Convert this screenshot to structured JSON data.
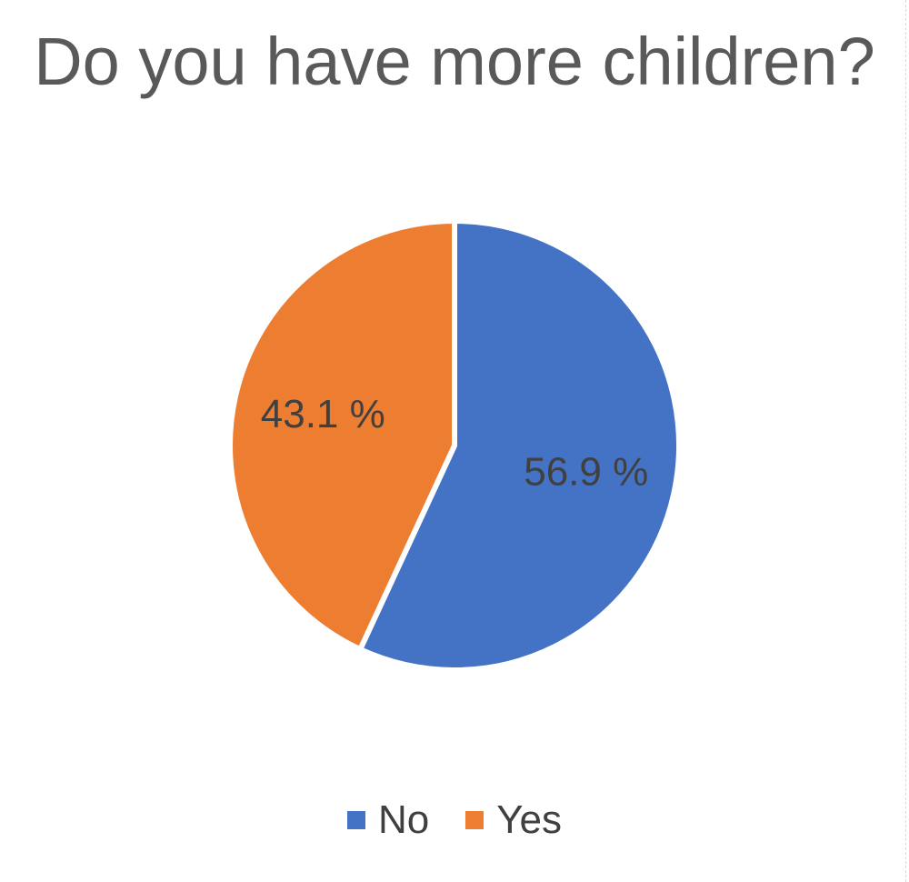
{
  "chart_data": {
    "type": "pie",
    "title": "Do you have more children?",
    "categories": [
      "No",
      "Yes"
    ],
    "values": [
      56.9,
      43.1
    ],
    "data_labels": [
      "56.9 %",
      "43.1 %"
    ],
    "colors": [
      "#4472C4",
      "#ED7D31"
    ],
    "legend_position": "bottom",
    "start_angle_deg": 0,
    "direction": "clockwise"
  }
}
